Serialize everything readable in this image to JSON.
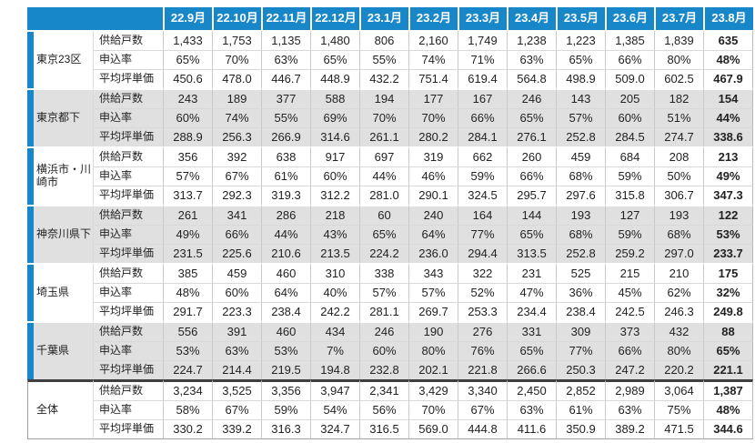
{
  "chart_data": {
    "type": "table",
    "columns": [
      "22.9月",
      "22.10月",
      "22.11月",
      "22.12月",
      "23.1月",
      "23.2月",
      "23.3月",
      "23.4月",
      "23.5月",
      "23.6月",
      "23.7月",
      "23.8月"
    ],
    "metrics": [
      "供給戸数",
      "申込率",
      "平均坪単価"
    ],
    "groups": [
      {
        "region": "東京23区",
        "shaded": false,
        "total": false,
        "supply": [
          "1,433",
          "1,753",
          "1,135",
          "1,480",
          "806",
          "2,160",
          "1,749",
          "1,238",
          "1,223",
          "1,385",
          "1,839",
          "635"
        ],
        "rate": [
          "65%",
          "70%",
          "63%",
          "65%",
          "55%",
          "74%",
          "71%",
          "63%",
          "65%",
          "66%",
          "80%",
          "48%"
        ],
        "price": [
          "450.6",
          "478.0",
          "446.7",
          "448.9",
          "432.2",
          "751.4",
          "619.4",
          "564.8",
          "498.9",
          "509.0",
          "602.5",
          "467.9"
        ]
      },
      {
        "region": "東京都下",
        "shaded": true,
        "total": false,
        "supply": [
          "243",
          "189",
          "377",
          "588",
          "194",
          "177",
          "167",
          "246",
          "143",
          "205",
          "182",
          "154"
        ],
        "rate": [
          "60%",
          "74%",
          "55%",
          "69%",
          "70%",
          "70%",
          "66%",
          "65%",
          "57%",
          "60%",
          "51%",
          "44%"
        ],
        "price": [
          "288.9",
          "256.3",
          "266.9",
          "314.6",
          "261.1",
          "280.2",
          "284.1",
          "276.1",
          "252.8",
          "284.5",
          "274.7",
          "338.6"
        ]
      },
      {
        "region": "横浜市・川崎市",
        "shaded": false,
        "total": false,
        "supply": [
          "356",
          "392",
          "638",
          "917",
          "697",
          "319",
          "662",
          "260",
          "459",
          "684",
          "208",
          "213"
        ],
        "rate": [
          "57%",
          "67%",
          "61%",
          "60%",
          "44%",
          "46%",
          "59%",
          "66%",
          "68%",
          "59%",
          "50%",
          "49%"
        ],
        "price": [
          "313.7",
          "292.3",
          "319.3",
          "312.2",
          "281.0",
          "290.1",
          "324.5",
          "295.7",
          "297.6",
          "315.8",
          "306.7",
          "347.3"
        ]
      },
      {
        "region": "神奈川県下",
        "shaded": true,
        "total": false,
        "supply": [
          "261",
          "341",
          "286",
          "218",
          "60",
          "240",
          "164",
          "144",
          "193",
          "127",
          "193",
          "122"
        ],
        "rate": [
          "49%",
          "66%",
          "44%",
          "43%",
          "65%",
          "64%",
          "77%",
          "65%",
          "68%",
          "59%",
          "68%",
          "53%"
        ],
        "price": [
          "231.5",
          "225.6",
          "210.6",
          "213.5",
          "224.2",
          "236.0",
          "294.4",
          "313.5",
          "252.8",
          "259.2",
          "297.0",
          "233.7"
        ]
      },
      {
        "region": "埼玉県",
        "shaded": false,
        "total": false,
        "supply": [
          "385",
          "459",
          "460",
          "310",
          "338",
          "343",
          "322",
          "231",
          "525",
          "215",
          "210",
          "175"
        ],
        "rate": [
          "48%",
          "60%",
          "64%",
          "40%",
          "57%",
          "57%",
          "52%",
          "47%",
          "36%",
          "45%",
          "62%",
          "32%"
        ],
        "price": [
          "291.7",
          "223.3",
          "238.4",
          "242.2",
          "281.1",
          "269.7",
          "253.3",
          "234.4",
          "238.4",
          "242.5",
          "246.3",
          "249.8"
        ]
      },
      {
        "region": "千葉県",
        "shaded": true,
        "total": false,
        "supply": [
          "556",
          "391",
          "460",
          "434",
          "246",
          "190",
          "276",
          "331",
          "309",
          "373",
          "432",
          "88"
        ],
        "rate": [
          "53%",
          "63%",
          "53%",
          "7%",
          "60%",
          "80%",
          "76%",
          "65%",
          "77%",
          "66%",
          "80%",
          "65%"
        ],
        "price": [
          "224.7",
          "214.4",
          "219.5",
          "194.8",
          "232.8",
          "202.1",
          "221.8",
          "266.6",
          "250.3",
          "247.2",
          "220.2",
          "221.1"
        ]
      },
      {
        "region": "全体",
        "shaded": false,
        "total": true,
        "supply": [
          "3,234",
          "3,525",
          "3,356",
          "3,947",
          "2,341",
          "3,429",
          "3,340",
          "2,450",
          "2,852",
          "2,989",
          "3,064",
          "1,387"
        ],
        "rate": [
          "58%",
          "67%",
          "59%",
          "54%",
          "56%",
          "70%",
          "67%",
          "63%",
          "61%",
          "63%",
          "75%",
          "48%"
        ],
        "price": [
          "330.2",
          "339.2",
          "316.3",
          "324.7",
          "316.5",
          "569.0",
          "444.8",
          "411.6",
          "350.9",
          "389.2",
          "471.5",
          "344.6"
        ]
      }
    ],
    "layout": {
      "legend": "none",
      "grid": "on",
      "last_column_bold": true
    },
    "colors": {
      "header_bg": "#1787c9",
      "header_text": "#ffffff",
      "accent_bar": "#1787c9",
      "shaded_group_bg": "#e0e0e0",
      "total_separator": "#3f3f3f",
      "body_text": "#222222"
    }
  }
}
